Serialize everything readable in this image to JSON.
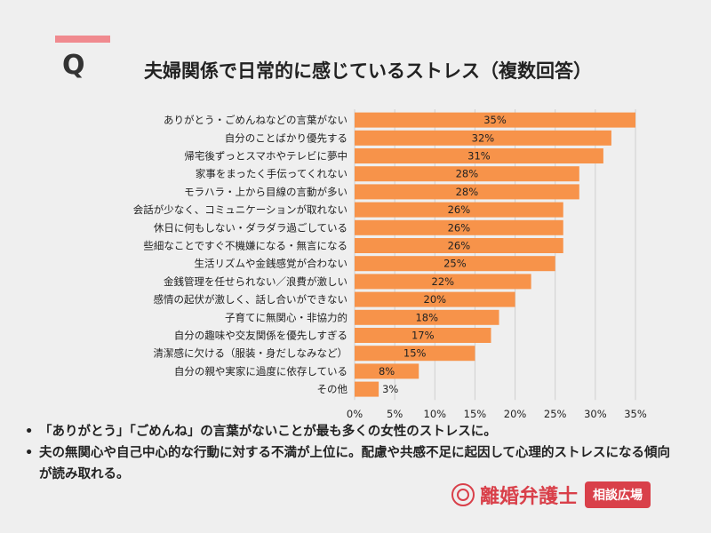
{
  "header": {
    "letter": "Q",
    "title": "夫婦関係で日常的に感じているストレス（複数回答）"
  },
  "chart_data": {
    "type": "bar",
    "orientation": "horizontal",
    "categories": [
      "ありがとう・ごめんねなどの言葉がない",
      "自分のことばかり優先する",
      "帰宅後ずっとスマホやテレビに夢中",
      "家事をまったく手伝ってくれない",
      "モラハラ・上から目線の言動が多い",
      "会話が少なく、コミュニケーションが取れない",
      "休日に何もしない・ダラダラ過ごしている",
      "些細なことですぐ不機嫌になる・無言になる",
      "生活リズムや金銭感覚が合わない",
      "金銭管理を任せられない／浪費が激しい",
      "感情の起伏が激しく、話し合いができない",
      "子育てに無関心・非協力的",
      "自分の趣味や交友関係を優先しすぎる",
      "清潔感に欠ける（服装・身だしなみなど）",
      "自分の親や実家に過度に依存している",
      "その他"
    ],
    "values": [
      35,
      32,
      31,
      28,
      28,
      26,
      26,
      26,
      25,
      22,
      20,
      18,
      17,
      15,
      8,
      3
    ],
    "value_labels": [
      "35%",
      "32%",
      "31%",
      "28%",
      "28%",
      "26%",
      "26%",
      "26%",
      "25%",
      "22%",
      "20%",
      "18%",
      "17%",
      "15%",
      "8%",
      "3%"
    ],
    "xlim": [
      0,
      35
    ],
    "xticks": [
      0,
      5,
      10,
      15,
      20,
      25,
      30,
      35
    ],
    "xtick_labels": [
      "0%",
      "5%",
      "10%",
      "15%",
      "20%",
      "25%",
      "30%",
      "35%"
    ],
    "grid": "vertical",
    "bar_color": "#f7934a"
  },
  "notes": [
    {
      "bullet": "•",
      "text": "「ありがとう」「ごめんね」の言葉がないことが最も多くの女性のストレスに。"
    },
    {
      "bullet": "•",
      "text": "夫の無関心や自己中心的な行動に対する不満が上位に。配慮や共感不足に起因して心理的ストレスになる傾向が読み取れる。"
    }
  ],
  "logo": {
    "name": "離婚弁護士",
    "badge": "相談広場",
    "color": "#d9404a",
    "icon": "seal-icon"
  },
  "colors": {
    "background": "#efefef",
    "accent": "#f08a8f",
    "bar": "#f7934a",
    "grid": "#cfcfcf"
  }
}
